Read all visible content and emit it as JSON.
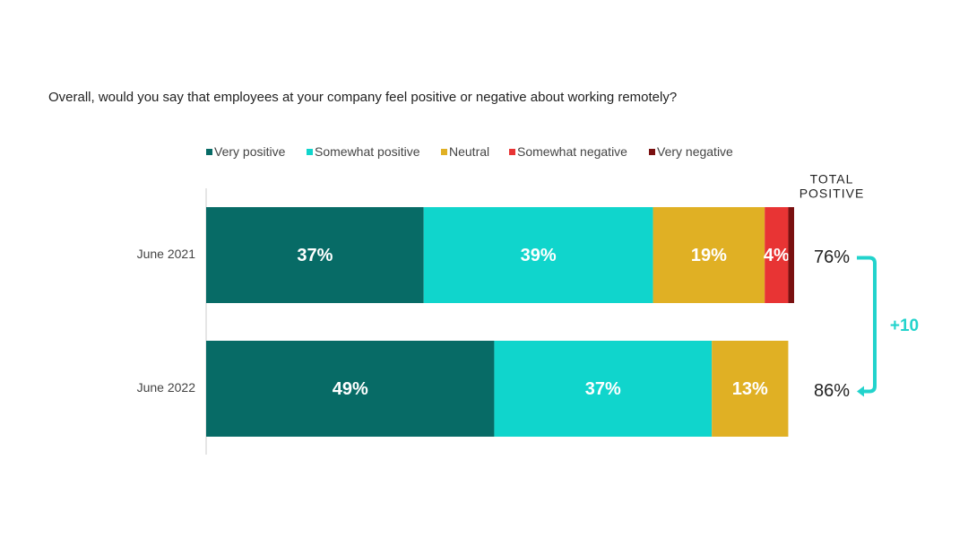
{
  "chart_data": {
    "type": "stacked-barh",
    "title": "Overall, would you say that employees at your company feel positive or negative about working remotely?",
    "categories": [
      "June 2021",
      "June 2022"
    ],
    "xlim": [
      0,
      100
    ],
    "series": [
      {
        "name": "Very positive",
        "color": "#076b66",
        "values": [
          37,
          49
        ],
        "value_labels": [
          "37%",
          "49%"
        ]
      },
      {
        "name": "Somewhat positive",
        "color": "#10d5cc",
        "values": [
          39,
          37
        ],
        "value_labels": [
          "39%",
          "37%"
        ]
      },
      {
        "name": "Neutral",
        "color": "#e0b024",
        "values": [
          19,
          13
        ],
        "value_labels": [
          "19%",
          "13%"
        ]
      },
      {
        "name": "Somewhat negative",
        "color": "#e83434",
        "values": [
          4,
          0
        ],
        "value_labels": [
          "4%",
          null
        ]
      },
      {
        "name": "Very negative",
        "color": "#7a1010",
        "values": [
          1,
          0
        ],
        "value_labels": [
          null,
          null
        ]
      }
    ],
    "total_positive": {
      "title": [
        "TOTAL",
        "POSITIVE"
      ],
      "values": [
        76,
        86
      ],
      "value_labels": [
        "76%",
        "86%"
      ],
      "color": "#22d3cc"
    },
    "change": {
      "value": 10,
      "label": "+10"
    }
  }
}
